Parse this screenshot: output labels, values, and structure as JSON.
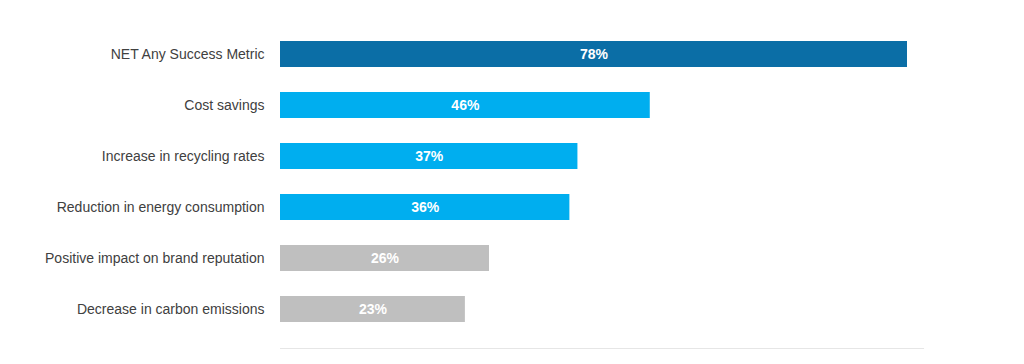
{
  "chart_data": {
    "type": "bar",
    "orientation": "horizontal",
    "categories": [
      "NET Any Success Metric",
      "Cost savings",
      "Increase in recycling rates",
      "Reduction in energy consumption",
      "Positive impact on brand reputation",
      "Decrease in carbon emissions"
    ],
    "values": [
      78,
      46,
      37,
      36,
      26,
      23
    ],
    "value_labels": [
      "78%",
      "46%",
      "37%",
      "36%",
      "26%",
      "23%"
    ],
    "colors": [
      "#0b6ea6",
      "#00aeef",
      "#00aeef",
      "#00aeef",
      "#bfbfbf",
      "#bfbfbf"
    ],
    "xlim": [
      0,
      80
    ],
    "xticks": [],
    "tick_labels": "y",
    "grid": false,
    "data_labels": true
  }
}
